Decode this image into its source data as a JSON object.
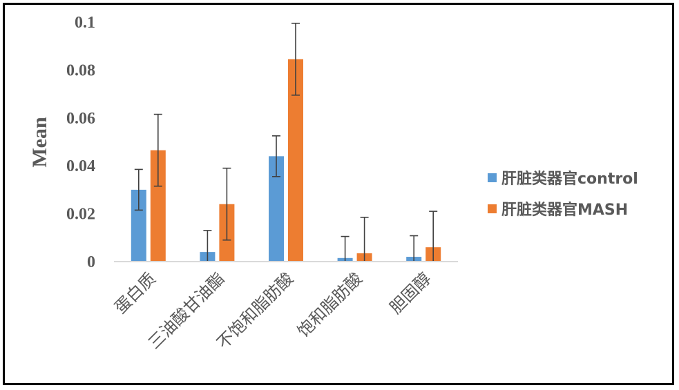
{
  "chart_data": {
    "type": "bar",
    "categories": [
      "蛋白质",
      "三油酸甘油酯",
      "不饱和脂肪酸",
      "饱和脂肪酸",
      "胆固醇"
    ],
    "series": [
      {
        "name": "肝脏类器官control",
        "color": "#5B9BD5",
        "values": [
          0.03,
          0.004,
          0.044,
          0.0015,
          0.002
        ],
        "errors": [
          0.0085,
          0.009,
          0.0085,
          0.009,
          0.0088
        ]
      },
      {
        "name": "肝脏类器官MASH",
        "color": "#ED7D31",
        "values": [
          0.0465,
          0.024,
          0.0845,
          0.0035,
          0.006
        ],
        "errors": [
          0.015,
          0.015,
          0.015,
          0.015,
          0.015
        ]
      }
    ],
    "ylabel": "Mean",
    "xlabel": "",
    "ylim": [
      0,
      0.1
    ],
    "yticks": [
      "0",
      "0.02",
      "0.04",
      "0.06",
      "0.08",
      "0.1"
    ],
    "grid": false,
    "legend_position": "right"
  }
}
